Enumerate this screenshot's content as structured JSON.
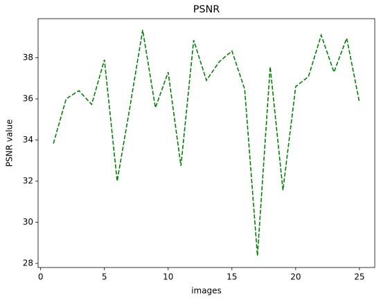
{
  "chart_data": {
    "type": "line",
    "title": "PSNR",
    "x_label": "images",
    "y_label": "PSNR value",
    "x": [
      1,
      2,
      3,
      4,
      5,
      6,
      7,
      8,
      9,
      10,
      11,
      12,
      13,
      14,
      15,
      16,
      17,
      18,
      19,
      20,
      21,
      22,
      23,
      24,
      25
    ],
    "series": [
      {
        "color": "#008000",
        "linestyle": "dashed",
        "values": [
          33.83,
          36.0,
          36.4,
          35.73,
          37.9,
          32.0,
          35.6,
          39.35,
          35.57,
          37.3,
          32.74,
          38.85,
          36.9,
          37.8,
          38.33,
          36.47,
          28.37,
          37.56,
          31.56,
          36.6,
          37.08,
          39.1,
          37.3,
          38.95,
          35.83
        ]
      }
    ],
    "xlim": [
      -0.2,
      26.2
    ],
    "xticks": [
      0,
      5,
      10,
      15,
      20,
      25
    ],
    "ylim": [
      27.8,
      39.9
    ],
    "yticks": [
      28,
      30,
      32,
      34,
      36,
      38
    ]
  }
}
